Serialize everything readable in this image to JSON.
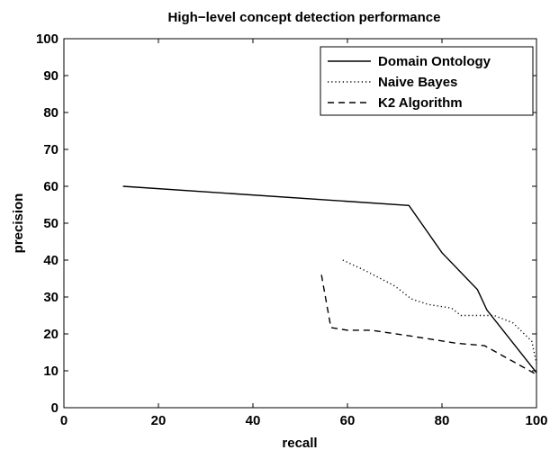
{
  "chart_data": {
    "type": "line",
    "title": "High−level concept detection performance",
    "xlabel": "recall",
    "ylabel": "precision",
    "xlim": [
      0,
      100
    ],
    "ylim": [
      0,
      100
    ],
    "xticks": [
      0,
      20,
      40,
      60,
      80,
      100
    ],
    "yticks": [
      0,
      10,
      20,
      30,
      40,
      50,
      60,
      70,
      80,
      90,
      100
    ],
    "grid": false,
    "legend_position": "top-right",
    "series": [
      {
        "name": "Domain Ontology",
        "style": "solid",
        "x": [
          12.5,
          73,
          80,
          87.5,
          89.5,
          100
        ],
        "y": [
          60,
          54.8,
          42,
          32,
          26.5,
          9.5
        ]
      },
      {
        "name": "Naive Bayes",
        "style": "dotted",
        "x": [
          59,
          64,
          70,
          73.5,
          77,
          82,
          84,
          91,
          95,
          97,
          99,
          100
        ],
        "y": [
          40,
          37,
          33,
          29.5,
          28,
          27,
          25,
          25,
          23,
          20.5,
          18,
          12
        ]
      },
      {
        "name": "K2 Algorithm",
        "style": "dashed",
        "x": [
          54.5,
          56.5,
          60,
          65,
          73,
          83,
          89,
          100
        ],
        "y": [
          36,
          21.7,
          21,
          21,
          19.5,
          17.5,
          16.8,
          9
        ]
      }
    ]
  }
}
